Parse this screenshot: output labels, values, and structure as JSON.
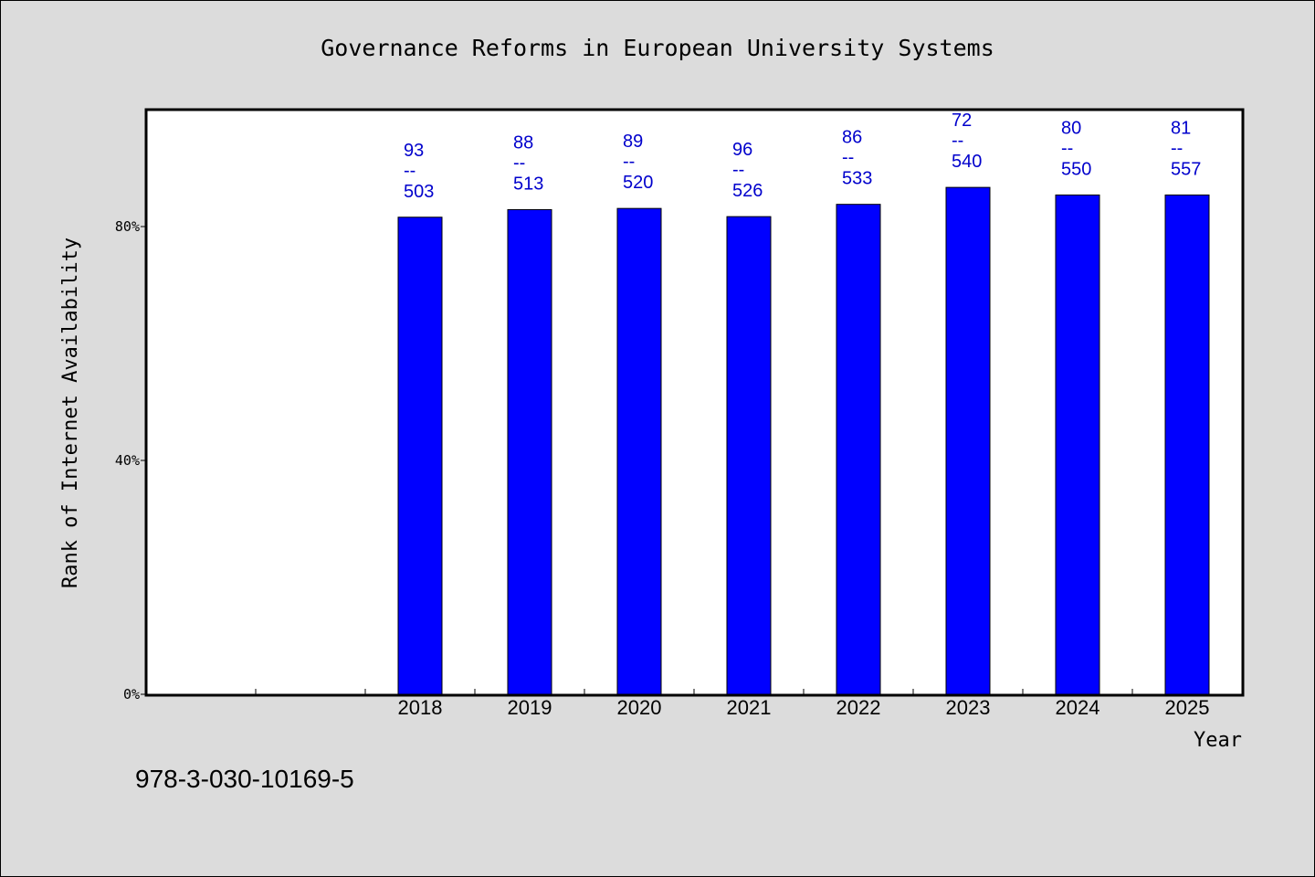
{
  "chart_data": {
    "type": "bar",
    "title": "Governance Reforms in European University Systems",
    "xlabel": "Year",
    "ylabel": "Rank of Internet Availability",
    "categories": [
      "",
      "",
      "2018",
      "2019",
      "2020",
      "2021",
      "2022",
      "2023",
      "2024",
      "2025"
    ],
    "values": [
      null,
      null,
      81.6,
      82.9,
      83.1,
      81.7,
      83.8,
      86.7,
      85.4,
      85.4
    ],
    "data_labels": [
      null,
      null,
      {
        "top": "93",
        "sep": "--",
        "bottom": "503"
      },
      {
        "top": "88",
        "sep": "--",
        "bottom": "513"
      },
      {
        "top": "89",
        "sep": "--",
        "bottom": "520"
      },
      {
        "top": "96",
        "sep": "--",
        "bottom": "526"
      },
      {
        "top": "86",
        "sep": "--",
        "bottom": "533"
      },
      {
        "top": "72",
        "sep": "--",
        "bottom": "540"
      },
      {
        "top": "80",
        "sep": "--",
        "bottom": "550"
      },
      {
        "top": "81",
        "sep": "--",
        "bottom": "557"
      }
    ],
    "ylim": [
      0,
      100
    ],
    "yticks": [
      0,
      40,
      80
    ],
    "ytick_labels": [
      "0%",
      "40%",
      "80%"
    ],
    "grid": false,
    "legend": "none",
    "colors": {
      "bar": "#0000ff",
      "data_label": "#0000cc",
      "plot_background": "#ffffff",
      "page_background": "#dcdcdc"
    }
  },
  "footnote": "978-3-030-10169-5"
}
